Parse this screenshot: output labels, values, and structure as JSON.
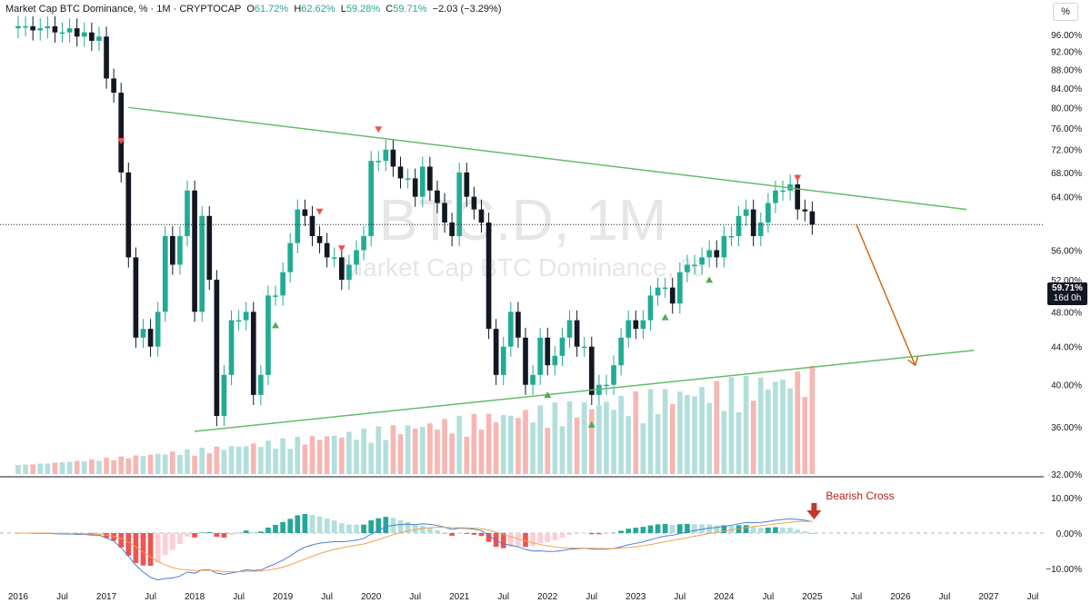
{
  "header": {
    "title": "Market Cap BTC Dominance, % · 1M · CRYPTOCAP",
    "o_label": "O",
    "o_value": "61.72%",
    "h_label": "H",
    "h_value": "62.62%",
    "l_label": "L",
    "l_value": "59.28%",
    "c_label": "C",
    "c_value": "59.71%",
    "change": "−2.03 (−3.29%)"
  },
  "scale_button": "%",
  "watermark": {
    "symbol": "BTC.D, 1M",
    "name": "Market Cap BTC Dominance, %"
  },
  "last_price": {
    "value": "59.71%",
    "countdown": "16d 0h"
  },
  "annotation": "Bearish Cross",
  "colors": {
    "up": "#22ab94",
    "down": "#131722",
    "vol_up": "#b2dfdb",
    "vol_down": "#f7b6b3",
    "trend": "#66bb6a",
    "arrow": "#d2691e",
    "marker_up": "#4caf50",
    "marker_down": "#ef5350",
    "macd": "#4a7fd4",
    "signal": "#f0a050"
  },
  "chart_data": [
    {
      "type": "candlestick",
      "title": "Market Cap BTC Dominance, %",
      "y_scale": "log",
      "ylim": [
        32,
        100
      ],
      "y_ticks": [
        "96.00%",
        "92.00%",
        "88.00%",
        "84.00%",
        "80.00%",
        "76.00%",
        "72.00%",
        "68.00%",
        "64.00%",
        "56.00%",
        "52.00%",
        "48.00%",
        "44.00%",
        "40.00%",
        "36.00%",
        "32.00%"
      ],
      "x_ticks": [
        "2016",
        "Jul",
        "2017",
        "Jul",
        "2018",
        "Jul",
        "2019",
        "Jul",
        "2020",
        "Jul",
        "2021",
        "Jul",
        "2022",
        "Jul",
        "2023",
        "Jul",
        "2024",
        "Jul",
        "2025",
        "Jul",
        "2026",
        "Jul",
        "2027",
        "Jul"
      ],
      "x_range": [
        "2016-01",
        "2027-07"
      ],
      "closes_monthly_from_2016_01": [
        98,
        98,
        97,
        97.5,
        98,
        96.5,
        96.5,
        97.5,
        95.5,
        96.5,
        94.5,
        95.5,
        86,
        83,
        68,
        55,
        45,
        46,
        44,
        48,
        58,
        54,
        58,
        65,
        48,
        61,
        52,
        37,
        41,
        47,
        47,
        48,
        39,
        41,
        50,
        50,
        53,
        57,
        62,
        61,
        58,
        57,
        55,
        55,
        52,
        54,
        56,
        58,
        70,
        70,
        72,
        69,
        67,
        67,
        64,
        69,
        65,
        63,
        60,
        58,
        68,
        64,
        62,
        60,
        46,
        41,
        44,
        48,
        45,
        40,
        41,
        45,
        42,
        43,
        45,
        47,
        44,
        44,
        39,
        40,
        40,
        42,
        45,
        47,
        46,
        47,
        50,
        51,
        51,
        49,
        53,
        54,
        54,
        55,
        56,
        55,
        58,
        58,
        61,
        62,
        58,
        60,
        63,
        65,
        65,
        66,
        62,
        61.7,
        59.7
      ],
      "volume": "relative monthly volume bars coloured by candle direction",
      "markers_up": [
        "2018-12",
        "2022-01",
        "2022-07",
        "2023-05",
        "2023-11",
        "2025-06"
      ],
      "markers_down": [
        "2016-05",
        "2017-03",
        "2019-06",
        "2019-09",
        "2020-02",
        "2024-11"
      ],
      "trendlines": [
        {
          "from": [
            "2017-04",
            80.0
          ],
          "to": [
            "2026-10",
            62.0
          ]
        },
        {
          "from": [
            "2018-01",
            35.6
          ],
          "to": [
            "2026-11",
            43.6
          ]
        }
      ],
      "arrow": {
        "from": [
          "2025-07",
          59.7
        ],
        "to": [
          "2026-03",
          42.0
        ]
      }
    },
    {
      "type": "macd",
      "ylim": [
        -12,
        12
      ],
      "y_ticks": [
        "10.00%",
        "0.00%",
        "−10.00%"
      ],
      "annotation": "Bearish Cross"
    }
  ]
}
